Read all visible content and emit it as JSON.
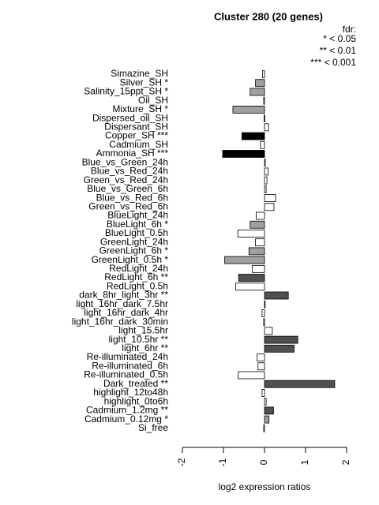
{
  "chart_data": {
    "type": "hbar",
    "title": "Cluster 280 (20 genes)",
    "legend_title": "fdr:",
    "legend_entries": [
      "* < 0.05",
      "** < 0.01",
      "*** < 0.001"
    ],
    "x_label": "log2 expression ratios",
    "categories": [
      "Simazine_SH",
      "Silver_SH *",
      "Salinity_15ppt_SH *",
      "Oil_SH",
      "Mixture_SH *",
      "Dispersed_oil_SH",
      "Dispersant_SH",
      "Copper_SH ***",
      "Cadmium_SH",
      "Ammonia_SH ***",
      "Blue_vs_Green_24h",
      "Blue_vs_Red_24h",
      "Green_vs_Red_24h",
      "Blue_vs_Green_6h",
      "Blue_vs_Red_6h",
      "Green_vs_Red_6h",
      "BlueLight_24h",
      "BlueLight_6h *",
      "BlueLight_0.5h",
      "GreenLight_24h",
      "GreenLight_6h *",
      "GreenLight_0.5h *",
      "RedLight_24h",
      "RedLight_6h **",
      "RedLight_0.5h",
      "dark_8hr_light_3hr **",
      "light_16hr_dark_7.5hr",
      "light_16hr_dark_4hr",
      "light_16hr_dark_30min",
      "light_15.5hr",
      "light_10.5hr **",
      "light_6hr **",
      "Re-illuminated_24h",
      "Re-illuminated_6h",
      "Re-illuminated_0.5h",
      "Dark_treated **",
      "highlight_12to48h",
      "highlight_0to6h",
      "Cadmium_1.2mg **",
      "Cadmium_0.12mg *",
      "Si_free"
    ],
    "values": [
      -0.05,
      -0.22,
      -0.35,
      -0.02,
      -0.77,
      -0.01,
      0.1,
      -0.55,
      -0.1,
      -1.02,
      0.02,
      0.09,
      0.06,
      0.04,
      0.27,
      0.23,
      -0.2,
      -0.35,
      -0.65,
      -0.22,
      -0.38,
      -0.97,
      -0.3,
      -0.63,
      -0.7,
      0.58,
      0.01,
      -0.06,
      -0.02,
      0.19,
      0.81,
      0.72,
      -0.18,
      -0.16,
      -0.64,
      1.71,
      -0.06,
      0.04,
      0.22,
      0.11,
      -0.02
    ],
    "colors": [
      "#ffffff",
      "#a0a0a0",
      "#a0a0a0",
      "#ffffff",
      "#a0a0a0",
      "#ffffff",
      "#ffffff",
      "#000000",
      "#ffffff",
      "#000000",
      "#ffffff",
      "#ffffff",
      "#ffffff",
      "#ffffff",
      "#ffffff",
      "#ffffff",
      "#ffffff",
      "#a0a0a0",
      "#ffffff",
      "#ffffff",
      "#a0a0a0",
      "#a0a0a0",
      "#ffffff",
      "#505050",
      "#ffffff",
      "#505050",
      "#ffffff",
      "#ffffff",
      "#ffffff",
      "#ffffff",
      "#505050",
      "#505050",
      "#ffffff",
      "#ffffff",
      "#ffffff",
      "#505050",
      "#ffffff",
      "#ffffff",
      "#505050",
      "#a0a0a0",
      "#ffffff"
    ],
    "xlim": [
      -2,
      2
    ],
    "xticks": [
      -2,
      -1,
      0,
      1,
      2
    ]
  }
}
